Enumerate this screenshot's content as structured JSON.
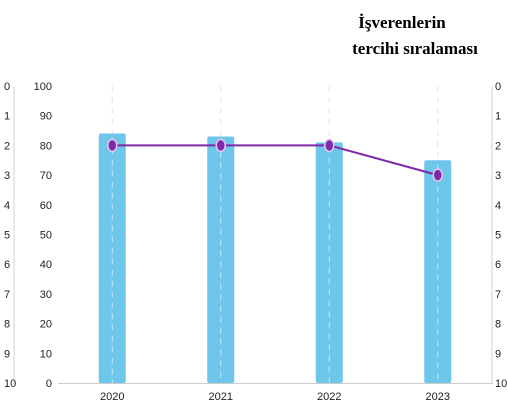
{
  "chart_data": {
    "type": "bar",
    "title_lines": [
      "İşverenlerin",
      "tercihi sıralaması"
    ],
    "categories": [
      "2020",
      "2021",
      "2022",
      "2023"
    ],
    "series": [
      {
        "type": "bar",
        "axis": "value",
        "values": [
          84,
          83,
          81,
          75
        ]
      },
      {
        "type": "line",
        "axis": "rank",
        "values": [
          2,
          2,
          2,
          3
        ]
      }
    ],
    "value_axis": {
      "ylim": [
        0,
        100
      ],
      "ticks": [
        "0",
        "10",
        "20",
        "30",
        "40",
        "50",
        "60",
        "70",
        "80",
        "90",
        "100"
      ]
    },
    "rank_axis": {
      "ylim": [
        0,
        10
      ],
      "inverted": true,
      "ticks": [
        "0",
        "1",
        "2",
        "3",
        "4",
        "5",
        "6",
        "7",
        "8",
        "9",
        "10"
      ]
    },
    "grid": "vertical-dashed",
    "colors": {
      "bar": "#6ec6ea",
      "line": "#7f2aa8",
      "marker": "#7f2aa8",
      "marker_inner": "#e7c9f5"
    }
  }
}
